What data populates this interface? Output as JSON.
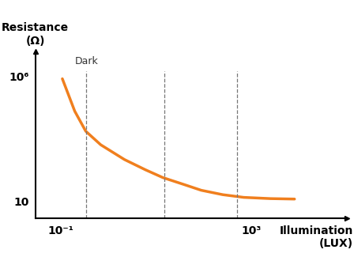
{
  "chart_data": {
    "type": "line",
    "x_label": "Illumination\n(LUX)",
    "y_label": "Resistance\n(Ω)",
    "log": true,
    "x": [
      0.11,
      0.2,
      0.34,
      0.7,
      2.2,
      6,
      14,
      40,
      89,
      250,
      690,
      2500,
      8000
    ],
    "values": [
      800000,
      40000,
      6300,
      1800,
      460,
      180,
      87,
      45,
      27,
      18,
      14,
      12.5,
      12
    ],
    "color": "#f07f1e",
    "xlim": [
      0.03,
      100000
    ],
    "ylim": [
      2,
      10000000
    ],
    "xticks": [
      {
        "value": 0.1,
        "label": "10⁻¹"
      },
      {
        "value": 1000,
        "label": "10³"
      }
    ],
    "yticks": [
      10,
      {
        "value": 1000000,
        "label": "10⁶"
      }
    ],
    "reference_lines": [
      0.35,
      15,
      500
    ],
    "annotations": [
      {
        "text": "Dark",
        "x": 0.35
      }
    ]
  }
}
